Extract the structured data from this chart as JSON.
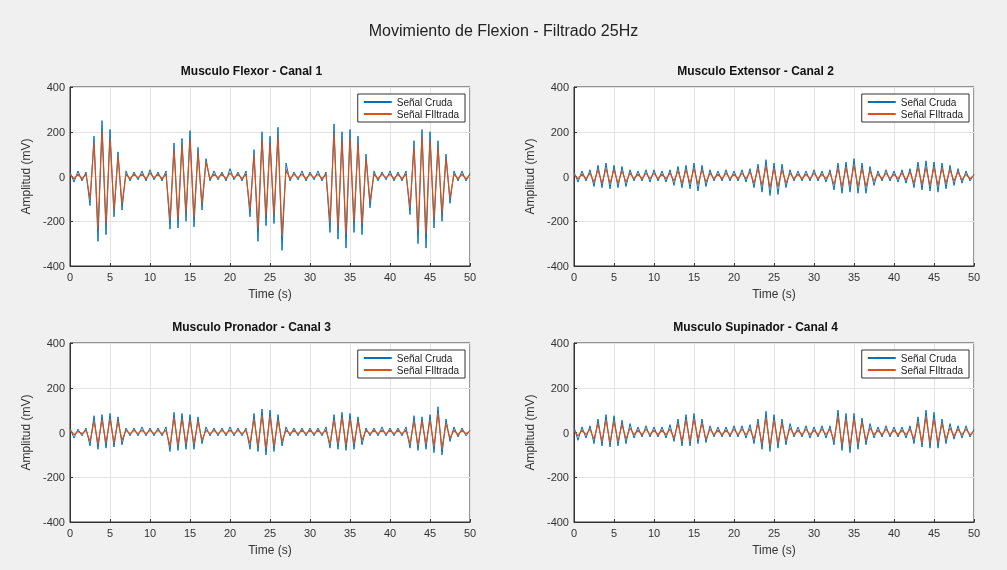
{
  "chart_data": [
    {
      "type": "line",
      "title": "Musculo Flexor - Canal 1",
      "annotations": [
        "Movimiento de Flexion - Filtrado 25Hz"
      ],
      "xlabel": "Time (s)",
      "ylabel": "Amplitud (mV)",
      "xlim": [
        0,
        50
      ],
      "xticks": [
        0,
        5,
        10,
        15,
        20,
        25,
        30,
        35,
        40,
        45,
        50
      ],
      "ylim": [
        -400,
        400
      ],
      "yticks": [
        -400,
        -200,
        0,
        200,
        400
      ],
      "grid": true,
      "legend": "top right",
      "marker": "none",
      "x": [
        0,
        0.5,
        1,
        1.5,
        2,
        2.5,
        3,
        3.5,
        4,
        4.5,
        5,
        5.5,
        6,
        6.5,
        7,
        7.5,
        8,
        8.5,
        9,
        9.5,
        10,
        10.5,
        11,
        11.5,
        12,
        12.5,
        13,
        13.5,
        14,
        14.5,
        15,
        15.5,
        16,
        16.5,
        17,
        17.5,
        18,
        18.5,
        19,
        19.5,
        20,
        20.5,
        21,
        21.5,
        22,
        22.5,
        23,
        23.5,
        24,
        24.5,
        25,
        25.5,
        26,
        26.5,
        27,
        27.5,
        28,
        28.5,
        29,
        29.5,
        30,
        30.5,
        31,
        31.5,
        32,
        32.5,
        33,
        33.5,
        34,
        34.5,
        35,
        35.5,
        36,
        36.5,
        37,
        37.5,
        38,
        38.5,
        39,
        39.5,
        40,
        40.5,
        41,
        41.5,
        42,
        42.5,
        43,
        43.5,
        44,
        44.5,
        45,
        45.5,
        46,
        46.5,
        47,
        47.5,
        48,
        48.5,
        49,
        49.5,
        50
      ],
      "series": [
        {
          "name": "Señal Cruda",
          "color": "#0072bd",
          "values": [
            20,
            -25,
            25,
            -20,
            20,
            -130,
            180,
            -290,
            250,
            -260,
            210,
            -180,
            110,
            -150,
            25,
            -20,
            20,
            -15,
            25,
            -20,
            30,
            -15,
            20,
            -20,
            25,
            -235,
            150,
            -230,
            170,
            -200,
            205,
            -225,
            130,
            -150,
            80,
            -20,
            25,
            -15,
            20,
            -20,
            35,
            -15,
            20,
            -20,
            25,
            -180,
            120,
            -290,
            200,
            -220,
            180,
            -210,
            220,
            -330,
            60,
            -20,
            20,
            -15,
            25,
            -20,
            20,
            -15,
            25,
            -20,
            20,
            -250,
            235,
            -280,
            200,
            -320,
            210,
            -250,
            180,
            -260,
            100,
            -140,
            25,
            -20,
            20,
            -15,
            25,
            -20,
            20,
            -20,
            25,
            -170,
            160,
            -300,
            210,
            -320,
            200,
            -230,
            160,
            -200,
            100,
            -120,
            25,
            -20,
            25,
            -20,
            15
          ]
        },
        {
          "name": "Señal FIltrada",
          "color": "#d95319",
          "values": [
            10,
            -10,
            10,
            -10,
            10,
            -100,
            150,
            -230,
            200,
            -210,
            170,
            -150,
            90,
            -120,
            10,
            -10,
            10,
            -5,
            10,
            -10,
            15,
            -5,
            10,
            -10,
            10,
            -190,
            120,
            -185,
            140,
            -160,
            165,
            -180,
            105,
            -120,
            65,
            -10,
            10,
            -5,
            10,
            -10,
            15,
            -5,
            10,
            -10,
            10,
            -145,
            95,
            -230,
            160,
            -175,
            145,
            -170,
            175,
            -260,
            30,
            -10,
            10,
            -5,
            10,
            -10,
            10,
            -5,
            10,
            -10,
            10,
            -200,
            190,
            -225,
            160,
            -255,
            170,
            -200,
            145,
            -210,
            80,
            -110,
            10,
            -10,
            10,
            -5,
            10,
            -10,
            10,
            -10,
            10,
            -135,
            130,
            -240,
            180,
            -255,
            160,
            -185,
            130,
            -160,
            80,
            -95,
            10,
            -10,
            10,
            -10,
            5
          ]
        }
      ]
    },
    {
      "type": "line",
      "title": "Musculo Extensor - Canal 2",
      "xlabel": "Time (s)",
      "ylabel": "Amplitud (mV)",
      "xlim": [
        0,
        50
      ],
      "xticks": [
        0,
        5,
        10,
        15,
        20,
        25,
        30,
        35,
        40,
        45,
        50
      ],
      "ylim": [
        -400,
        400
      ],
      "yticks": [
        -400,
        -200,
        0,
        200,
        400
      ],
      "grid": true,
      "legend": "top right",
      "marker": "none",
      "x": [
        0,
        0.5,
        1,
        1.5,
        2,
        2.5,
        3,
        3.5,
        4,
        4.5,
        5,
        5.5,
        6,
        6.5,
        7,
        7.5,
        8,
        8.5,
        9,
        9.5,
        10,
        10.5,
        11,
        11.5,
        12,
        12.5,
        13,
        13.5,
        14,
        14.5,
        15,
        15.5,
        16,
        16.5,
        17,
        17.5,
        18,
        18.5,
        19,
        19.5,
        20,
        20.5,
        21,
        21.5,
        22,
        22.5,
        23,
        23.5,
        24,
        24.5,
        25,
        25.5,
        26,
        26.5,
        27,
        27.5,
        28,
        28.5,
        29,
        29.5,
        30,
        30.5,
        31,
        31.5,
        32,
        32.5,
        33,
        33.5,
        34,
        34.5,
        35,
        35.5,
        36,
        36.5,
        37,
        37.5,
        38,
        38.5,
        39,
        39.5,
        40,
        40.5,
        41,
        41.5,
        42,
        42.5,
        43,
        43.5,
        44,
        44.5,
        45,
        45.5,
        46,
        46.5,
        47,
        47.5,
        48,
        48.5,
        49,
        49.5,
        50
      ],
      "series": [
        {
          "name": "Señal Cruda",
          "color": "#0072bd",
          "values": [
            20,
            -25,
            25,
            -20,
            30,
            -45,
            50,
            -50,
            60,
            -55,
            50,
            -50,
            45,
            -45,
            30,
            -20,
            25,
            -20,
            30,
            -25,
            30,
            -20,
            25,
            -25,
            30,
            -40,
            45,
            -50,
            50,
            -55,
            60,
            -65,
            50,
            -45,
            30,
            -20,
            25,
            -20,
            30,
            -20,
            25,
            -20,
            30,
            -25,
            35,
            -50,
            55,
            -70,
            75,
            -85,
            60,
            -80,
            55,
            -50,
            30,
            -20,
            25,
            -20,
            25,
            -20,
            30,
            -20,
            25,
            -25,
            30,
            -60,
            60,
            -75,
            65,
            -70,
            80,
            -75,
            60,
            -75,
            45,
            -40,
            25,
            -20,
            30,
            -20,
            25,
            -25,
            30,
            -30,
            35,
            -50,
            65,
            -60,
            70,
            -65,
            65,
            -70,
            60,
            -55,
            50,
            -40,
            35,
            -30,
            25,
            -20,
            10
          ]
        },
        {
          "name": "Señal FIltrada",
          "color": "#d95319",
          "values": [
            10,
            -10,
            10,
            -10,
            15,
            -25,
            30,
            -30,
            35,
            -30,
            30,
            -30,
            25,
            -25,
            15,
            -10,
            10,
            -10,
            15,
            -10,
            15,
            -10,
            10,
            -10,
            15,
            -20,
            25,
            -30,
            30,
            -30,
            35,
            -35,
            30,
            -25,
            15,
            -10,
            10,
            -10,
            15,
            -10,
            10,
            -10,
            15,
            -10,
            20,
            -30,
            35,
            -40,
            45,
            -50,
            35,
            -45,
            30,
            -30,
            15,
            -10,
            10,
            -10,
            10,
            -10,
            15,
            -10,
            10,
            -10,
            15,
            -35,
            35,
            -45,
            40,
            -40,
            50,
            -45,
            35,
            -45,
            25,
            -20,
            10,
            -10,
            15,
            -10,
            10,
            -10,
            15,
            -15,
            20,
            -30,
            40,
            -35,
            40,
            -40,
            40,
            -40,
            35,
            -30,
            30,
            -20,
            20,
            -15,
            10,
            -10,
            5
          ]
        }
      ]
    },
    {
      "type": "line",
      "title": "Musculo Pronador - Canal 3",
      "xlabel": "Time (s)",
      "ylabel": "Amplitud (mV)",
      "xlim": [
        0,
        50
      ],
      "xticks": [
        0,
        5,
        10,
        15,
        20,
        25,
        30,
        35,
        40,
        45,
        50
      ],
      "ylim": [
        -400,
        400
      ],
      "yticks": [
        -400,
        -200,
        0,
        200,
        400
      ],
      "grid": true,
      "legend": "top right",
      "marker": "none",
      "x": [
        0,
        0.5,
        1,
        1.5,
        2,
        2.5,
        3,
        3.5,
        4,
        4.5,
        5,
        5.5,
        6,
        6.5,
        7,
        7.5,
        8,
        8.5,
        9,
        9.5,
        10,
        10.5,
        11,
        11.5,
        12,
        12.5,
        13,
        13.5,
        14,
        14.5,
        15,
        15.5,
        16,
        16.5,
        17,
        17.5,
        18,
        18.5,
        19,
        19.5,
        20,
        20.5,
        21,
        21.5,
        22,
        22.5,
        23,
        23.5,
        24,
        24.5,
        25,
        25.5,
        26,
        26.5,
        27,
        27.5,
        28,
        28.5,
        29,
        29.5,
        30,
        30.5,
        31,
        31.5,
        32,
        32.5,
        33,
        33.5,
        34,
        34.5,
        35,
        35.5,
        36,
        36.5,
        37,
        37.5,
        38,
        38.5,
        39,
        39.5,
        40,
        40.5,
        41,
        41.5,
        42,
        42.5,
        43,
        43.5,
        44,
        44.5,
        45,
        45.5,
        46,
        46.5,
        47,
        47.5,
        48,
        48.5,
        49,
        49.5,
        50
      ],
      "series": [
        {
          "name": "Señal Cruda",
          "color": "#0072bd",
          "values": [
            20,
            -25,
            15,
            -15,
            20,
            -60,
            75,
            -75,
            80,
            -70,
            85,
            -65,
            70,
            -55,
            20,
            -15,
            20,
            -15,
            25,
            -15,
            20,
            -15,
            20,
            -15,
            25,
            -85,
            90,
            -80,
            85,
            -75,
            80,
            -75,
            70,
            -50,
            25,
            -15,
            20,
            -15,
            20,
            -15,
            25,
            -15,
            20,
            -15,
            20,
            -75,
            85,
            -85,
            105,
            -100,
            100,
            -85,
            80,
            -60,
            25,
            -15,
            20,
            -15,
            20,
            -15,
            20,
            -15,
            20,
            -15,
            25,
            -70,
            80,
            -75,
            90,
            -80,
            85,
            -75,
            70,
            -55,
            20,
            -15,
            20,
            -15,
            25,
            -15,
            20,
            -15,
            20,
            -15,
            25,
            -70,
            75,
            -80,
            70,
            -75,
            80,
            -90,
            115,
            -100,
            60,
            -40,
            25,
            -20,
            20,
            -15,
            10
          ]
        },
        {
          "name": "Señal FIltrada",
          "color": "#d95319",
          "values": [
            10,
            -10,
            5,
            -5,
            10,
            -40,
            50,
            -50,
            55,
            -45,
            60,
            -45,
            50,
            -35,
            10,
            -5,
            10,
            -5,
            10,
            -5,
            10,
            -5,
            10,
            -5,
            10,
            -60,
            65,
            -55,
            60,
            -50,
            55,
            -50,
            50,
            -35,
            10,
            -5,
            10,
            -5,
            10,
            -5,
            10,
            -5,
            10,
            -5,
            10,
            -50,
            60,
            -60,
            75,
            -70,
            70,
            -60,
            55,
            -40,
            10,
            -5,
            10,
            -5,
            10,
            -5,
            10,
            -5,
            10,
            -5,
            10,
            -50,
            55,
            -50,
            65,
            -55,
            60,
            -50,
            50,
            -35,
            10,
            -5,
            10,
            -5,
            10,
            -5,
            10,
            -5,
            10,
            -5,
            10,
            -50,
            50,
            -55,
            50,
            -50,
            55,
            -60,
            85,
            -70,
            40,
            -25,
            10,
            -10,
            10,
            -5,
            5
          ]
        }
      ]
    },
    {
      "type": "line",
      "title": "Musculo Supinador - Canal 4",
      "xlabel": "Time (s)",
      "ylabel": "Amplitud (mV)",
      "xlim": [
        0,
        50
      ],
      "xticks": [
        0,
        5,
        10,
        15,
        20,
        25,
        30,
        35,
        40,
        45,
        50
      ],
      "ylim": [
        -400,
        400
      ],
      "yticks": [
        -400,
        -200,
        0,
        200,
        400
      ],
      "grid": true,
      "legend": "top right",
      "marker": "none",
      "x": [
        0,
        0.5,
        1,
        1.5,
        2,
        2.5,
        3,
        3.5,
        4,
        4.5,
        5,
        5.5,
        6,
        6.5,
        7,
        7.5,
        8,
        8.5,
        9,
        9.5,
        10,
        10.5,
        11,
        11.5,
        12,
        12.5,
        13,
        13.5,
        14,
        14.5,
        15,
        15.5,
        16,
        16.5,
        17,
        17.5,
        18,
        18.5,
        19,
        19.5,
        20,
        20.5,
        21,
        21.5,
        22,
        22.5,
        23,
        23.5,
        24,
        24.5,
        25,
        25.5,
        26,
        26.5,
        27,
        27.5,
        28,
        28.5,
        29,
        29.5,
        30,
        30.5,
        31,
        31.5,
        32,
        32.5,
        33,
        33.5,
        34,
        34.5,
        35,
        35.5,
        36,
        36.5,
        37,
        37.5,
        38,
        38.5,
        39,
        39.5,
        40,
        40.5,
        41,
        41.5,
        42,
        42.5,
        43,
        43.5,
        44,
        44.5,
        45,
        45.5,
        46,
        46.5,
        47,
        47.5,
        48,
        48.5,
        49,
        49.5,
        50
      ],
      "series": [
        {
          "name": "Señal Cruda",
          "color": "#0072bd",
          "values": [
            25,
            -35,
            25,
            -25,
            30,
            -50,
            60,
            -60,
            80,
            -65,
            75,
            -60,
            55,
            -50,
            40,
            -25,
            25,
            -20,
            30,
            -20,
            25,
            -20,
            25,
            -25,
            35,
            -40,
            60,
            -60,
            80,
            -60,
            85,
            -50,
            60,
            -45,
            30,
            -20,
            25,
            -20,
            25,
            -20,
            30,
            -20,
            30,
            -25,
            35,
            -50,
            60,
            -75,
            95,
            -85,
            80,
            -70,
            60,
            -55,
            40,
            -20,
            25,
            -20,
            30,
            -25,
            25,
            -20,
            30,
            -25,
            30,
            -55,
            100,
            -80,
            85,
            -90,
            85,
            -75,
            65,
            -55,
            40,
            -25,
            25,
            -20,
            30,
            -20,
            25,
            -20,
            25,
            -25,
            30,
            -50,
            70,
            -65,
            100,
            -70,
            90,
            -70,
            60,
            -50,
            40,
            -30,
            30,
            -25,
            30,
            -20,
            15
          ]
        },
        {
          "name": "Señal FIltrada",
          "color": "#d95319",
          "values": [
            10,
            -15,
            10,
            -10,
            15,
            -30,
            40,
            -40,
            55,
            -45,
            50,
            -40,
            35,
            -30,
            20,
            -10,
            10,
            -10,
            15,
            -10,
            10,
            -10,
            10,
            -10,
            15,
            -25,
            40,
            -40,
            55,
            -40,
            60,
            -30,
            40,
            -30,
            15,
            -10,
            10,
            -10,
            10,
            -10,
            15,
            -10,
            15,
            -10,
            15,
            -30,
            40,
            -50,
            65,
            -60,
            55,
            -45,
            40,
            -35,
            20,
            -10,
            10,
            -10,
            15,
            -10,
            10,
            -10,
            15,
            -10,
            15,
            -35,
            70,
            -55,
            60,
            -60,
            60,
            -50,
            45,
            -35,
            20,
            -10,
            10,
            -10,
            15,
            -10,
            10,
            -10,
            10,
            -10,
            15,
            -30,
            45,
            -45,
            70,
            -45,
            60,
            -45,
            40,
            -30,
            20,
            -15,
            15,
            -10,
            15,
            -10,
            5
          ]
        }
      ]
    }
  ]
}
